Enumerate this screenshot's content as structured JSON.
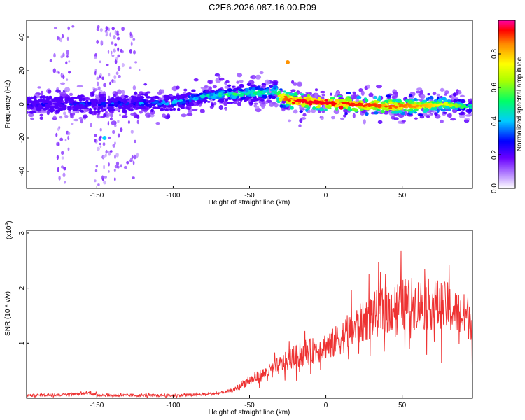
{
  "title": "C2E6.2026.087.16.00.R09",
  "spectrogram": {
    "xlabel": "Height of straight line (km)",
    "ylabel": "Frequency (Hz)",
    "xlim": [
      -196,
      96
    ],
    "ylim": [
      -50,
      50
    ],
    "xticks": [
      -150,
      -100,
      -50,
      0,
      50
    ],
    "yticks": [
      -40,
      -20,
      0,
      20,
      40
    ],
    "xtick_labels": [
      "-150",
      "-100",
      "-50",
      "0",
      "50"
    ],
    "ytick_labels": [
      "-40",
      "-20",
      "0",
      "20",
      "40"
    ]
  },
  "colorbar": {
    "label": "Normalized spectral amplitude",
    "range": [
      0,
      1
    ],
    "ticks": [
      0.0,
      0.2,
      0.4,
      0.6,
      0.8
    ],
    "tick_labels": [
      "0.0",
      "0.2",
      "0.4",
      "0.6",
      "0.8"
    ],
    "colors": [
      "#ffffff",
      "#b98cff",
      "#6a00ff",
      "#0000ff",
      "#00ccff",
      "#00ff66",
      "#aaff00",
      "#ffff00",
      "#ff8800",
      "#ff0000",
      "#ff00aa"
    ]
  },
  "snr_plot": {
    "xlabel": "Height of straight line (km)",
    "ylabel": "SNR (10 * v/v)",
    "scale_label": "(x10",
    "scale_exp": "4",
    "scale_close": ")",
    "xlim": [
      -196,
      96
    ],
    "ylim": [
      0,
      3.05
    ],
    "xticks": [
      -150,
      -100,
      -50,
      0,
      50
    ],
    "yticks": [
      1,
      2,
      3
    ],
    "xtick_labels": [
      "-150",
      "-100",
      "-50",
      "0",
      "50"
    ],
    "ytick_labels": [
      "1",
      "2",
      "3"
    ],
    "line_color": "#ee3333"
  },
  "chart_data": [
    {
      "type": "heatmap",
      "title": "C2E6.2026.087.16.00.R09",
      "xlabel": "Height of straight line (km)",
      "ylabel": "Frequency (Hz)",
      "xlim": [
        -196,
        96
      ],
      "ylim": [
        -50,
        50
      ],
      "zlabel": "Normalized spectral amplitude",
      "zlim": [
        0,
        1
      ],
      "ridge": {
        "x": [
          -196,
          -150,
          -100,
          -80,
          -60,
          -40,
          -33,
          -30,
          -20,
          0,
          20,
          40,
          60,
          80,
          96
        ],
        "frequency": [
          0,
          0,
          1,
          5,
          6,
          7,
          8,
          4,
          2,
          1,
          0,
          -1,
          -1,
          0,
          -2
        ],
        "peak_amplitude": [
          0.3,
          0.35,
          0.45,
          0.5,
          0.6,
          0.6,
          0.6,
          0.85,
          0.95,
          0.95,
          0.92,
          0.9,
          0.85,
          0.7,
          0.45
        ]
      },
      "isolated_features": [
        {
          "x": -25,
          "frequency": 25,
          "amplitude": 0.85
        },
        {
          "x": -145,
          "frequency": -20,
          "amplitude": 0.4
        },
        {
          "x": -15,
          "frequency": 2,
          "amplitude": 0.95
        },
        {
          "x": 10,
          "frequency": -2,
          "amplitude": 0.95
        },
        {
          "x": 35,
          "frequency": -1,
          "amplitude": 0.9
        }
      ]
    },
    {
      "type": "line",
      "title": "",
      "xlabel": "Height of straight line (km)",
      "ylabel": "SNR (10 * v/v) (x10^4)",
      "xlim": [
        -196,
        96
      ],
      "ylim": [
        0,
        3.05
      ],
      "series": [
        {
          "name": "SNR",
          "x": [
            -196,
            -180,
            -160,
            -155,
            -150,
            -130,
            -110,
            -100,
            -90,
            -80,
            -70,
            -60,
            -55,
            -50,
            -45,
            -40,
            -35,
            -30,
            -25,
            -20,
            -15,
            -10,
            -5,
            0,
            5,
            10,
            15,
            20,
            25,
            30,
            35,
            40,
            45,
            50,
            55,
            60,
            65,
            70,
            75,
            80,
            85,
            90,
            96
          ],
          "values": [
            0.05,
            0.06,
            0.08,
            0.1,
            0.06,
            0.05,
            0.05,
            0.05,
            0.06,
            0.07,
            0.09,
            0.15,
            0.25,
            0.32,
            0.38,
            0.45,
            0.52,
            0.6,
            0.68,
            0.75,
            0.8,
            0.85,
            0.88,
            0.95,
            1.0,
            1.1,
            1.2,
            1.3,
            1.4,
            1.5,
            1.55,
            1.6,
            1.65,
            1.7,
            1.72,
            1.72,
            1.7,
            1.7,
            1.68,
            1.65,
            1.55,
            1.5,
            1.45
          ],
          "color": "#ee3333"
        }
      ]
    }
  ]
}
